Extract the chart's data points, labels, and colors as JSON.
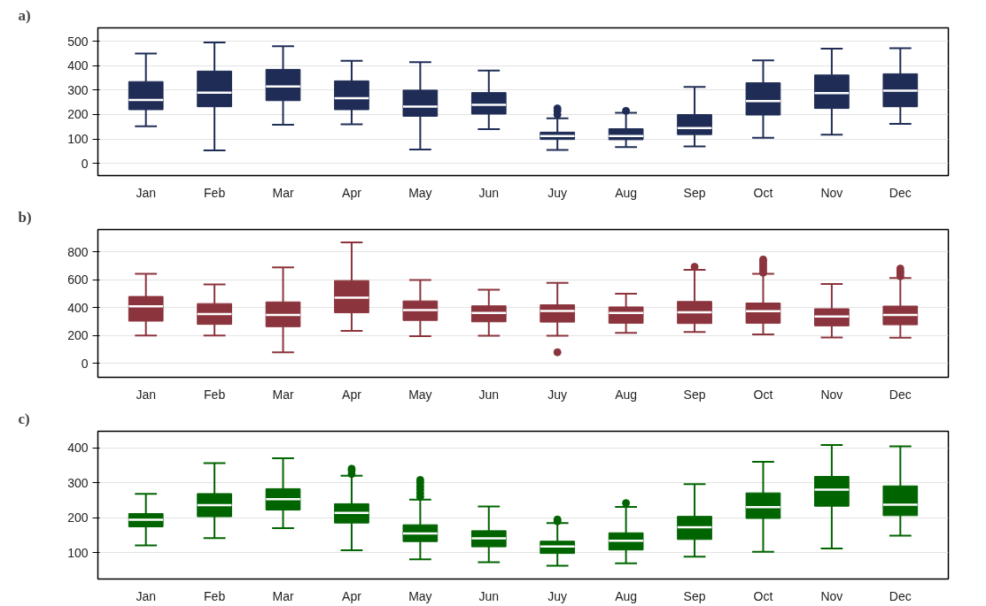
{
  "chart_data": [
    {
      "type": "box",
      "title": "a)",
      "categories": [
        "Jan",
        "Feb",
        "Mar",
        "Apr",
        "May",
        "Jun",
        "Juy",
        "Aug",
        "Sep",
        "Oct",
        "Nov",
        "Dec"
      ],
      "color": "#1f2d56",
      "ylim": [
        -50,
        555
      ],
      "yticks": [
        0,
        100,
        200,
        300,
        400,
        500
      ],
      "grid": "y",
      "boxes": [
        {
          "low": 152,
          "q1": 220,
          "median": 260,
          "q3": 335,
          "high": 450
        },
        {
          "low": 53,
          "q1": 232,
          "median": 290,
          "q3": 378,
          "high": 495
        },
        {
          "low": 158,
          "q1": 257,
          "median": 315,
          "q3": 385,
          "high": 480
        },
        {
          "low": 160,
          "q1": 220,
          "median": 267,
          "q3": 338,
          "high": 420
        },
        {
          "low": 57,
          "q1": 193,
          "median": 233,
          "q3": 300,
          "high": 415
        },
        {
          "low": 140,
          "q1": 202,
          "median": 240,
          "q3": 290,
          "high": 380
        },
        {
          "low": 55,
          "q1": 98,
          "median": 112,
          "q3": 128,
          "high": 185,
          "outliers": [
            200,
            215,
            225
          ]
        },
        {
          "low": 67,
          "q1": 97,
          "median": 112,
          "q3": 142,
          "high": 207,
          "outliers": [
            215
          ]
        },
        {
          "low": 70,
          "q1": 118,
          "median": 145,
          "q3": 200,
          "high": 313
        },
        {
          "low": 105,
          "q1": 198,
          "median": 255,
          "q3": 330,
          "high": 422
        },
        {
          "low": 118,
          "q1": 225,
          "median": 288,
          "q3": 362,
          "high": 470
        },
        {
          "low": 162,
          "q1": 232,
          "median": 298,
          "q3": 367,
          "high": 472
        }
      ]
    },
    {
      "type": "box",
      "title": "b)",
      "categories": [
        "Jan",
        "Feb",
        "Mar",
        "Apr",
        "May",
        "Jun",
        "Juy",
        "Aug",
        "Sep",
        "Oct",
        "Nov",
        "Dec"
      ],
      "color": "#8b343d",
      "ylim": [
        -100,
        960
      ],
      "yticks": [
        0,
        200,
        400,
        600,
        800
      ],
      "grid": "y",
      "boxes": [
        {
          "low": 200,
          "q1": 303,
          "median": 410,
          "q3": 480,
          "high": 643
        },
        {
          "low": 200,
          "q1": 280,
          "median": 354,
          "q3": 429,
          "high": 567
        },
        {
          "low": 79,
          "q1": 263,
          "median": 348,
          "q3": 441,
          "high": 688
        },
        {
          "low": 233,
          "q1": 363,
          "median": 471,
          "q3": 594,
          "high": 868
        },
        {
          "low": 195,
          "q1": 308,
          "median": 382,
          "q3": 448,
          "high": 598
        },
        {
          "low": 198,
          "q1": 298,
          "median": 361,
          "q3": 413,
          "high": 528
        },
        {
          "low": 198,
          "q1": 296,
          "median": 376,
          "q3": 420,
          "high": 578,
          "outliers": [
            80
          ]
        },
        {
          "low": 219,
          "q1": 288,
          "median": 361,
          "q3": 405,
          "high": 500
        },
        {
          "low": 225,
          "q1": 286,
          "median": 366,
          "q3": 444,
          "high": 671,
          "outliers": [
            693
          ]
        },
        {
          "low": 208,
          "q1": 288,
          "median": 375,
          "q3": 433,
          "high": 643,
          "outliers": [
            650,
            670,
            690,
            710,
            730,
            745
          ]
        },
        {
          "low": 186,
          "q1": 269,
          "median": 336,
          "q3": 392,
          "high": 569
        },
        {
          "low": 184,
          "q1": 277,
          "median": 348,
          "q3": 411,
          "high": 612,
          "outliers": [
            625,
            645,
            660,
            680
          ]
        }
      ]
    },
    {
      "type": "box",
      "title": "c)",
      "categories": [
        "Jan",
        "Feb",
        "Mar",
        "Apr",
        "May",
        "Jun",
        "Juy",
        "Aug",
        "Sep",
        "Oct",
        "Nov",
        "Dec"
      ],
      "color": "#006400",
      "ylim": [
        25,
        447
      ],
      "yticks": [
        100,
        200,
        300,
        400
      ],
      "grid": "y",
      "boxes": [
        {
          "low": 121,
          "q1": 174,
          "median": 194,
          "q3": 212,
          "high": 268
        },
        {
          "low": 142,
          "q1": 203,
          "median": 236,
          "q3": 269,
          "high": 356
        },
        {
          "low": 170,
          "q1": 222,
          "median": 253,
          "q3": 283,
          "high": 370
        },
        {
          "low": 107,
          "q1": 185,
          "median": 214,
          "q3": 240,
          "high": 320,
          "outliers": [
            325,
            335,
            340
          ]
        },
        {
          "low": 81,
          "q1": 132,
          "median": 155,
          "q3": 180,
          "high": 252,
          "outliers": [
            260,
            270,
            280,
            290,
            300,
            308
          ]
        },
        {
          "low": 73,
          "q1": 117,
          "median": 141,
          "q3": 163,
          "high": 232
        },
        {
          "low": 63,
          "q1": 98,
          "median": 118,
          "q3": 133,
          "high": 185,
          "outliers": [
            190,
            195
          ]
        },
        {
          "low": 70,
          "q1": 108,
          "median": 134,
          "q3": 157,
          "high": 231,
          "outliers": [
            242
          ]
        },
        {
          "low": 89,
          "q1": 138,
          "median": 173,
          "q3": 204,
          "high": 296
        },
        {
          "low": 103,
          "q1": 198,
          "median": 230,
          "q3": 271,
          "high": 360
        },
        {
          "low": 112,
          "q1": 233,
          "median": 280,
          "q3": 318,
          "high": 408
        },
        {
          "low": 149,
          "q1": 206,
          "median": 237,
          "q3": 291,
          "high": 404
        }
      ]
    }
  ]
}
